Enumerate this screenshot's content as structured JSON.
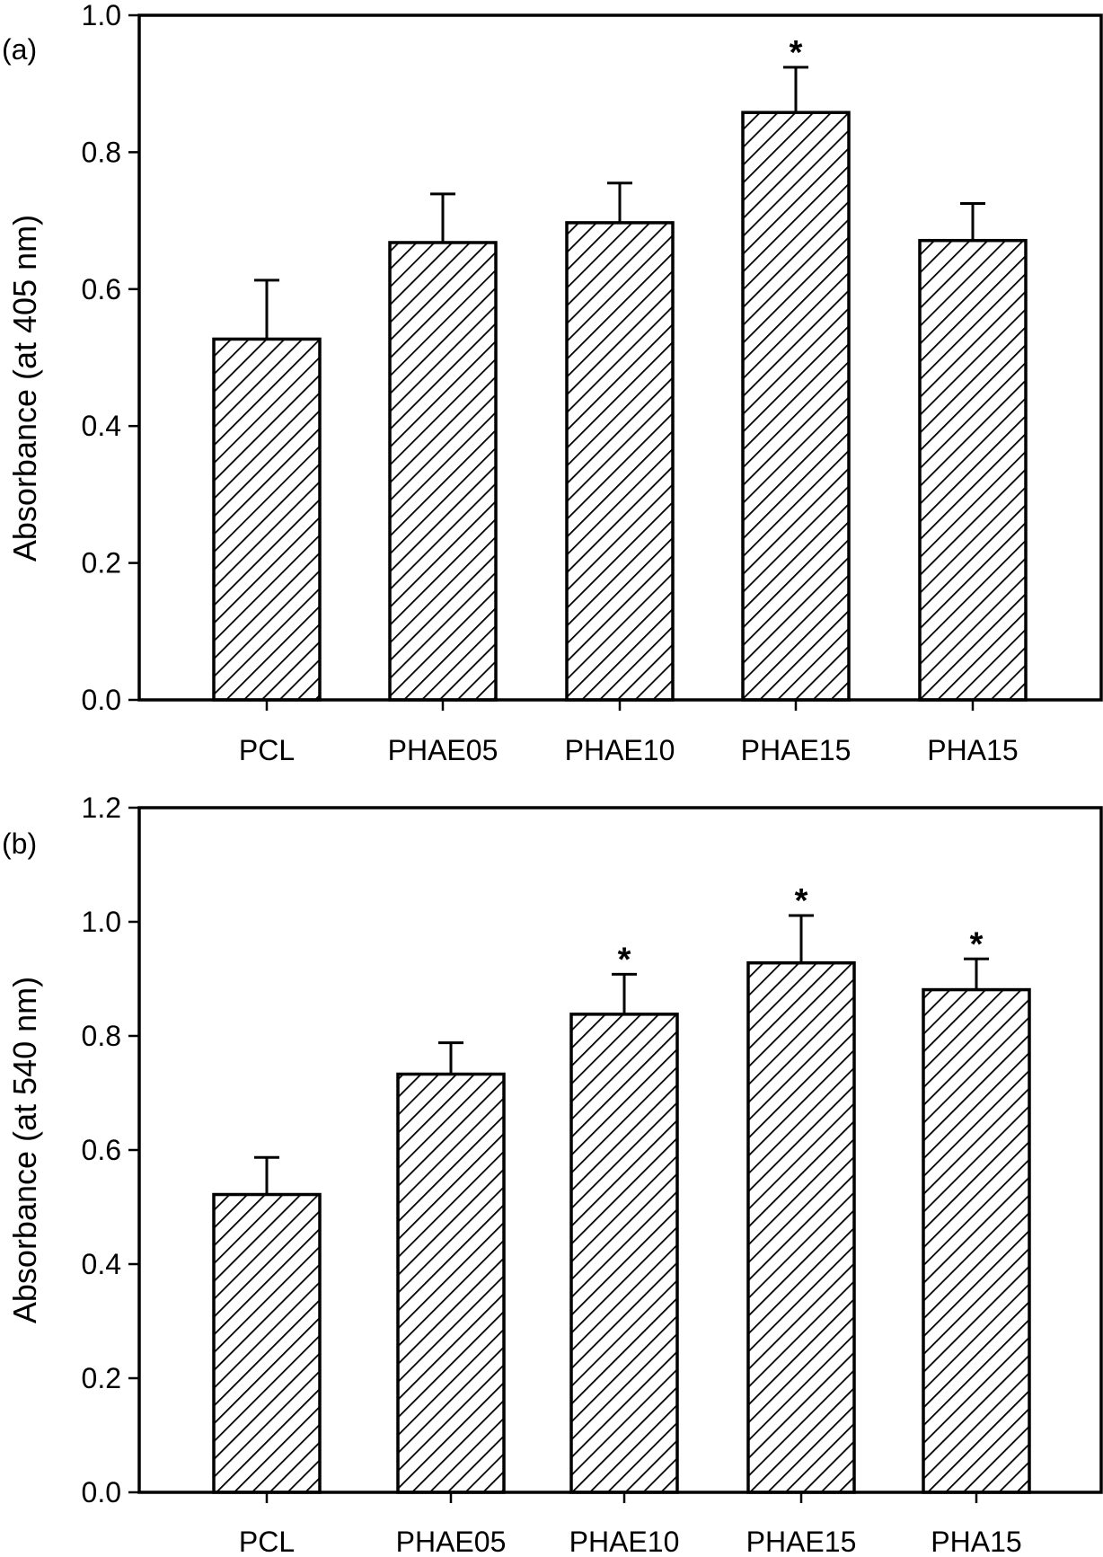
{
  "chart_data": [
    {
      "type": "bar",
      "panel_label": "(a)",
      "title": "",
      "xlabel": "",
      "ylabel": "Absorbance (at 405 nm)",
      "categories": [
        "PCL",
        "PHAE05",
        "PHAE10",
        "PHAE15",
        "PHA15"
      ],
      "values": [
        0.527,
        0.668,
        0.697,
        0.858,
        0.671
      ],
      "errors": [
        0.086,
        0.071,
        0.058,
        0.066,
        0.054
      ],
      "significance": [
        "",
        "",
        "",
        "*",
        ""
      ],
      "ylim": [
        0,
        1.0
      ],
      "yticks": [
        0.0,
        0.2,
        0.4,
        0.6,
        0.8,
        1.0
      ],
      "ytick_labels": [
        "0.0",
        "0.2",
        "0.4",
        "0.6",
        "0.8",
        "1.0"
      ],
      "fill": "diagonal-hatch",
      "grid": false,
      "legend": "none"
    },
    {
      "type": "bar",
      "panel_label": "(b)",
      "title": "",
      "xlabel": "",
      "ylabel": "Absorbance (at 540 nm)",
      "categories": [
        "PCL",
        "PHAE05",
        "PHAE10",
        "PHAE15",
        "PHA15"
      ],
      "values": [
        0.522,
        0.733,
        0.838,
        0.928,
        0.881
      ],
      "errors": [
        0.065,
        0.055,
        0.07,
        0.083,
        0.054
      ],
      "significance": [
        "",
        "",
        "*",
        "*",
        "*"
      ],
      "ylim": [
        0,
        1.2
      ],
      "yticks": [
        0.0,
        0.2,
        0.4,
        0.6,
        0.8,
        1.0,
        1.2
      ],
      "ytick_labels": [
        "0.0",
        "0.2",
        "0.4",
        "0.6",
        "0.8",
        "1.0",
        "1.2"
      ],
      "fill": "diagonal-hatch",
      "grid": false,
      "legend": "none"
    }
  ]
}
